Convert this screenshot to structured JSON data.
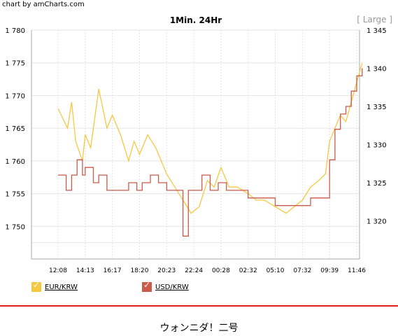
{
  "credit": "chart by amCharts.com",
  "size_toggle": "[ Large ]",
  "caption": "ウォンニダ！二号",
  "colors": {
    "eur": "#f5c842",
    "usd": "#cc5a4a",
    "grid": "#e4e4e4",
    "axis": "#aaaaaa"
  },
  "chart_data": {
    "type": "line",
    "title": "1Min. 24Hr",
    "x": [
      "12:08",
      "14:13",
      "16:17",
      "18:20",
      "20:23",
      "22:24",
      "00:28",
      "02:32",
      "05:10",
      "07:32",
      "09:39",
      "11:46"
    ],
    "yleft": {
      "ticks": [
        "1 780",
        "1 775",
        "1 770",
        "1 765",
        "1 760",
        "1 755",
        "1 750"
      ],
      "range": [
        1745,
        1780
      ]
    },
    "yright": {
      "ticks": [
        "1 345",
        "1 340",
        "1 335",
        "1 330",
        "1 325",
        "1 320"
      ],
      "range": [
        1315,
        1345
      ]
    },
    "grid": true,
    "legend_position": "bottom-left",
    "series": [
      {
        "name": "EUR/KRW",
        "axis": "left",
        "points": [
          [
            0,
            1768
          ],
          [
            0.35,
            1765
          ],
          [
            0.5,
            1769
          ],
          [
            0.65,
            1763
          ],
          [
            0.9,
            1760
          ],
          [
            1,
            1764
          ],
          [
            1.2,
            1762
          ],
          [
            1.5,
            1771
          ],
          [
            1.8,
            1765
          ],
          [
            2,
            1767
          ],
          [
            2.3,
            1764
          ],
          [
            2.6,
            1760
          ],
          [
            2.8,
            1763
          ],
          [
            3,
            1761
          ],
          [
            3.3,
            1764
          ],
          [
            3.6,
            1762
          ],
          [
            4,
            1758
          ],
          [
            4.3,
            1756
          ],
          [
            4.6,
            1754
          ],
          [
            4.9,
            1752
          ],
          [
            5.2,
            1753
          ],
          [
            5.5,
            1757
          ],
          [
            5.75,
            1756
          ],
          [
            6,
            1759
          ],
          [
            6.3,
            1756
          ],
          [
            6.6,
            1756
          ],
          [
            7,
            1755
          ],
          [
            7.3,
            1754
          ],
          [
            7.6,
            1754
          ],
          [
            8,
            1753
          ],
          [
            8.4,
            1752
          ],
          [
            8.7,
            1753
          ],
          [
            9,
            1754
          ],
          [
            9.3,
            1756
          ],
          [
            9.6,
            1757
          ],
          [
            9.85,
            1758
          ],
          [
            10,
            1763
          ],
          [
            10.2,
            1765
          ],
          [
            10.4,
            1767
          ],
          [
            10.6,
            1766
          ],
          [
            10.8,
            1769
          ],
          [
            11,
            1772
          ],
          [
            11.2,
            1775
          ]
        ]
      },
      {
        "name": "USD/KRW",
        "axis": "right",
        "points": [
          [
            0,
            1326
          ],
          [
            0.3,
            1324
          ],
          [
            0.5,
            1326
          ],
          [
            0.7,
            1328
          ],
          [
            0.9,
            1326
          ],
          [
            1,
            1327
          ],
          [
            1.3,
            1325
          ],
          [
            1.5,
            1326
          ],
          [
            1.8,
            1324
          ],
          [
            2,
            1324
          ],
          [
            2.3,
            1324
          ],
          [
            2.6,
            1325
          ],
          [
            2.9,
            1324
          ],
          [
            3.1,
            1325
          ],
          [
            3.4,
            1326
          ],
          [
            3.7,
            1325
          ],
          [
            4,
            1324
          ],
          [
            4.3,
            1324
          ],
          [
            4.6,
            1318
          ],
          [
            4.8,
            1324
          ],
          [
            5,
            1324
          ],
          [
            5.3,
            1326
          ],
          [
            5.6,
            1324
          ],
          [
            5.9,
            1325
          ],
          [
            6.2,
            1324
          ],
          [
            6.6,
            1324
          ],
          [
            7,
            1323
          ],
          [
            7.5,
            1323
          ],
          [
            8,
            1322
          ],
          [
            8.5,
            1322
          ],
          [
            9,
            1322
          ],
          [
            9.3,
            1323
          ],
          [
            9.6,
            1323
          ],
          [
            9.8,
            1323
          ],
          [
            10,
            1328
          ],
          [
            10.2,
            1332
          ],
          [
            10.4,
            1334
          ],
          [
            10.6,
            1335
          ],
          [
            10.8,
            1337
          ],
          [
            11,
            1339
          ],
          [
            11.2,
            1340
          ]
        ]
      }
    ]
  }
}
